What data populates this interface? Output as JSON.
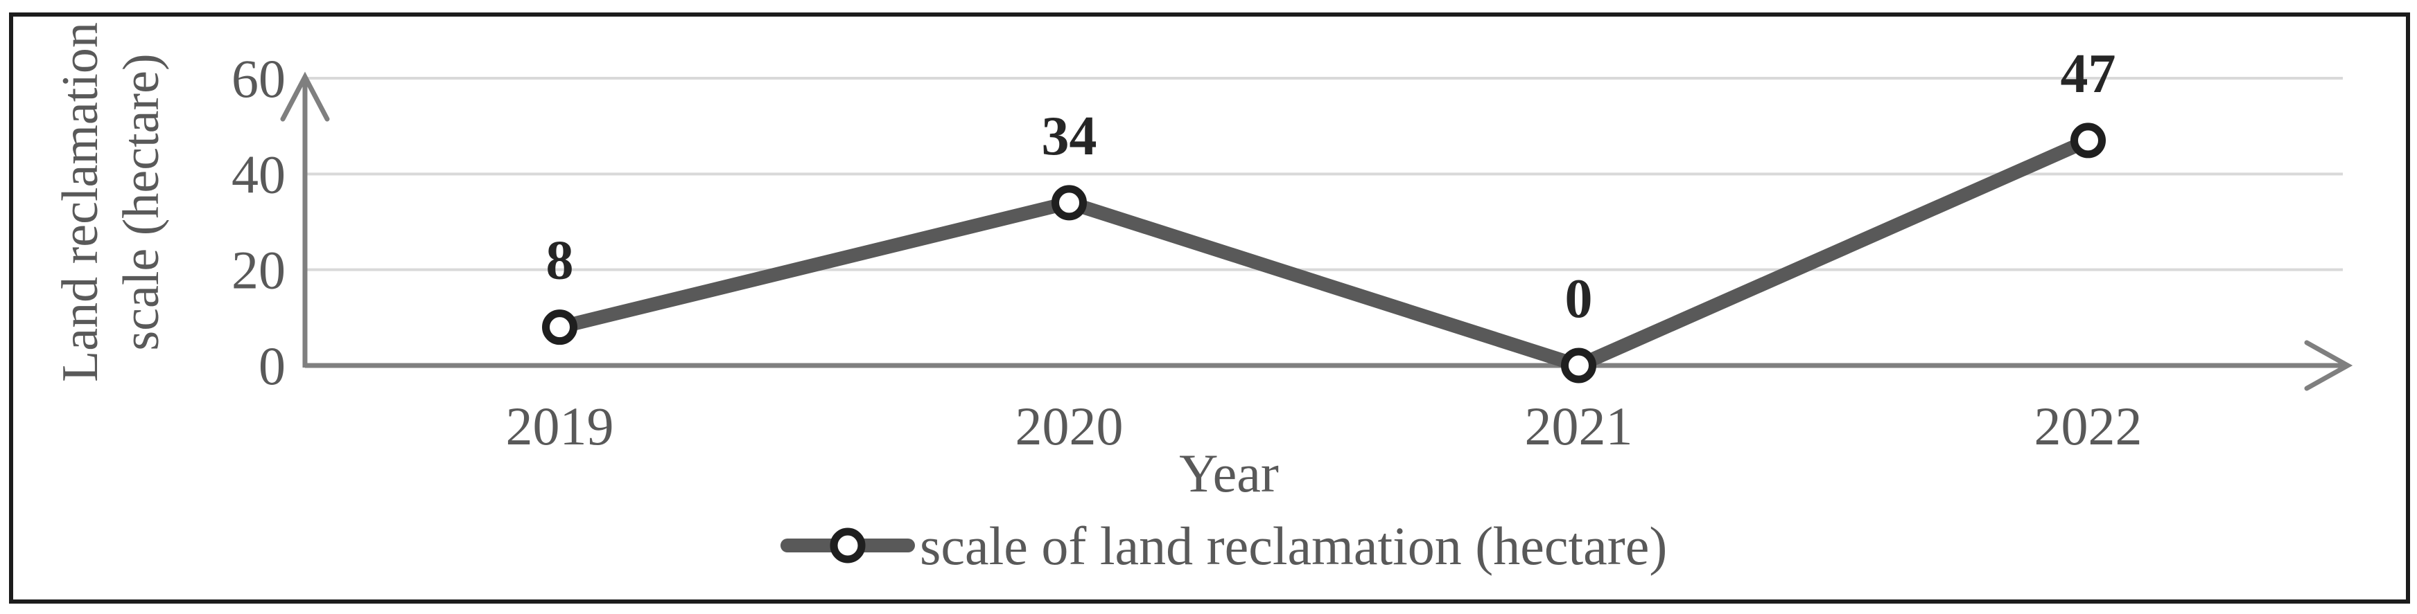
{
  "chart_data": {
    "type": "line",
    "title": "",
    "categories": [
      "2019",
      "2020",
      "2021",
      "2022"
    ],
    "series": [
      {
        "name": "scale of land reclamation (hectare)",
        "values": [
          8,
          34,
          0,
          47
        ]
      }
    ],
    "data_labels": [
      "8",
      "34",
      "0",
      "47"
    ],
    "xlabel": "Year",
    "ylabel": "Land reclamation scale (hectare)",
    "ylabel_lines": [
      "Land reclamation",
      "scale (hectare)"
    ],
    "legend": "scale of land reclamation (hectare)",
    "legend_position": "bottom",
    "yticks": [
      0,
      20,
      40,
      60
    ],
    "ytick_labels": [
      "0",
      "20",
      "40",
      "60"
    ],
    "ylim": [
      0,
      60
    ],
    "grid": "horizontal-only",
    "axes_style": "arrowed",
    "colors": {
      "line": "#595959",
      "marker_ring": "#1f1f1f",
      "marker_fill": "#ffffff",
      "gridline": "#d9d9d9",
      "axis": "#7f7f7f",
      "text": "#595959",
      "data_label": "#262626",
      "frame_border": "#1c1c1c",
      "background": "#ffffff"
    }
  }
}
